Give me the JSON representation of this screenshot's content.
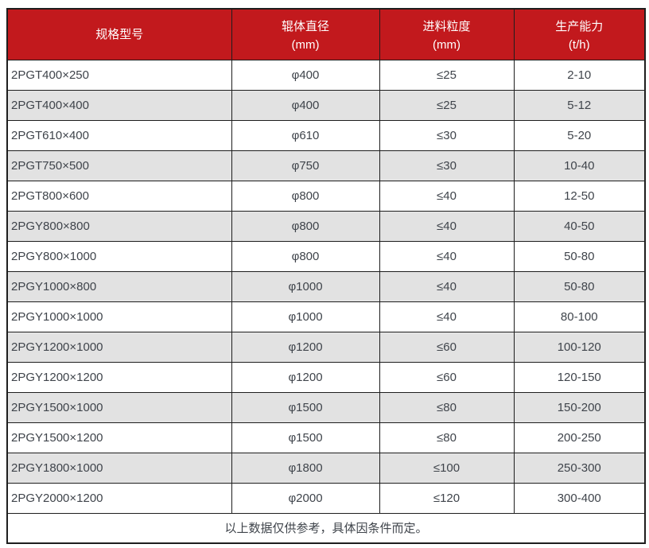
{
  "table": {
    "columns": [
      {
        "label": "规格型号",
        "unit": ""
      },
      {
        "label": "辊体直径",
        "unit": "(mm)"
      },
      {
        "label": "进料粒度",
        "unit": "(mm)"
      },
      {
        "label": "生产能力",
        "unit": "(t/h)"
      }
    ],
    "rows": [
      {
        "model": "2PGT400×250",
        "roller_diameter": "φ400",
        "feed_size": "≤25",
        "capacity": "2-10"
      },
      {
        "model": "2PGT400×400",
        "roller_diameter": "φ400",
        "feed_size": "≤25",
        "capacity": "5-12"
      },
      {
        "model": "2PGT610×400",
        "roller_diameter": "φ610",
        "feed_size": "≤30",
        "capacity": "5-20"
      },
      {
        "model": "2PGT750×500",
        "roller_diameter": "φ750",
        "feed_size": "≤30",
        "capacity": "10-40"
      },
      {
        "model": "2PGT800×600",
        "roller_diameter": "φ800",
        "feed_size": "≤40",
        "capacity": "12-50"
      },
      {
        "model": "2PGY800×800",
        "roller_diameter": "φ800",
        "feed_size": "≤40",
        "capacity": "40-50"
      },
      {
        "model": "2PGY800×1000",
        "roller_diameter": "φ800",
        "feed_size": "≤40",
        "capacity": "50-80"
      },
      {
        "model": "2PGY1000×800",
        "roller_diameter": "φ1000",
        "feed_size": "≤40",
        "capacity": "50-80"
      },
      {
        "model": "2PGY1000×1000",
        "roller_diameter": "φ1000",
        "feed_size": "≤40",
        "capacity": "80-100"
      },
      {
        "model": "2PGY1200×1000",
        "roller_diameter": "φ1200",
        "feed_size": "≤60",
        "capacity": "100-120"
      },
      {
        "model": "2PGY1200×1200",
        "roller_diameter": "φ1200",
        "feed_size": "≤60",
        "capacity": "120-150"
      },
      {
        "model": "2PGY1500×1000",
        "roller_diameter": "φ1500",
        "feed_size": "≤80",
        "capacity": "150-200"
      },
      {
        "model": "2PGY1500×1200",
        "roller_diameter": "φ1500",
        "feed_size": "≤80",
        "capacity": "200-250"
      },
      {
        "model": "2PGY1800×1000",
        "roller_diameter": "φ1800",
        "feed_size": "≤100",
        "capacity": "250-300"
      },
      {
        "model": "2PGY2000×1200",
        "roller_diameter": "φ2000",
        "feed_size": "≤120",
        "capacity": "300-400"
      }
    ],
    "footer_note": "以上数据仅供参考，具体因条件而定。"
  },
  "colors": {
    "header_bg": "#C2191D",
    "header_text": "#FFFFFF",
    "row_bg": "#FFFFFF",
    "row_alt_bg": "#E2E2E2",
    "border": "#1E1E1E",
    "text": "#3F444B",
    "page_bg": "#FFFFFF"
  }
}
